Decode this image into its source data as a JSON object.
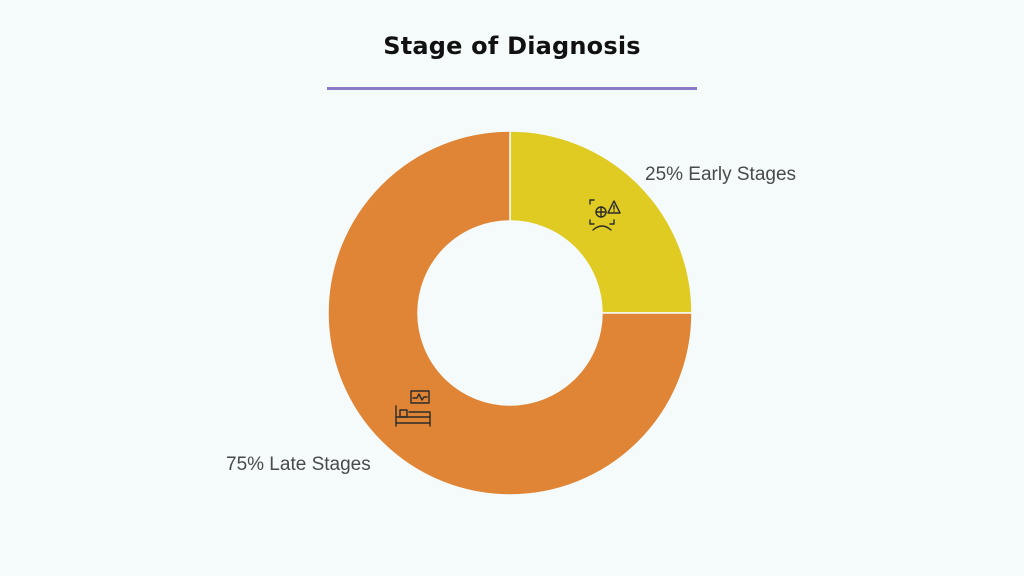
{
  "title": "Stage of Diagnosis",
  "colors": {
    "background": "#f5fbfb",
    "title_rule": "#8a79c4",
    "slice_separator": "#f5fbfb",
    "icon_stroke": "#2b2b2b"
  },
  "chart_data": {
    "type": "pie",
    "donut": true,
    "title": "Stage of Diagnosis",
    "slices": [
      {
        "label": "Early Stages",
        "value": 25,
        "display": "25% Early Stages",
        "color": "#dfcb22",
        "icon": "medical-scan-warning-icon"
      },
      {
        "label": "Late Stages",
        "value": 75,
        "display": "75% Late Stages",
        "color": "#e08535",
        "icon": "hospital-bed-monitor-icon"
      }
    ]
  }
}
